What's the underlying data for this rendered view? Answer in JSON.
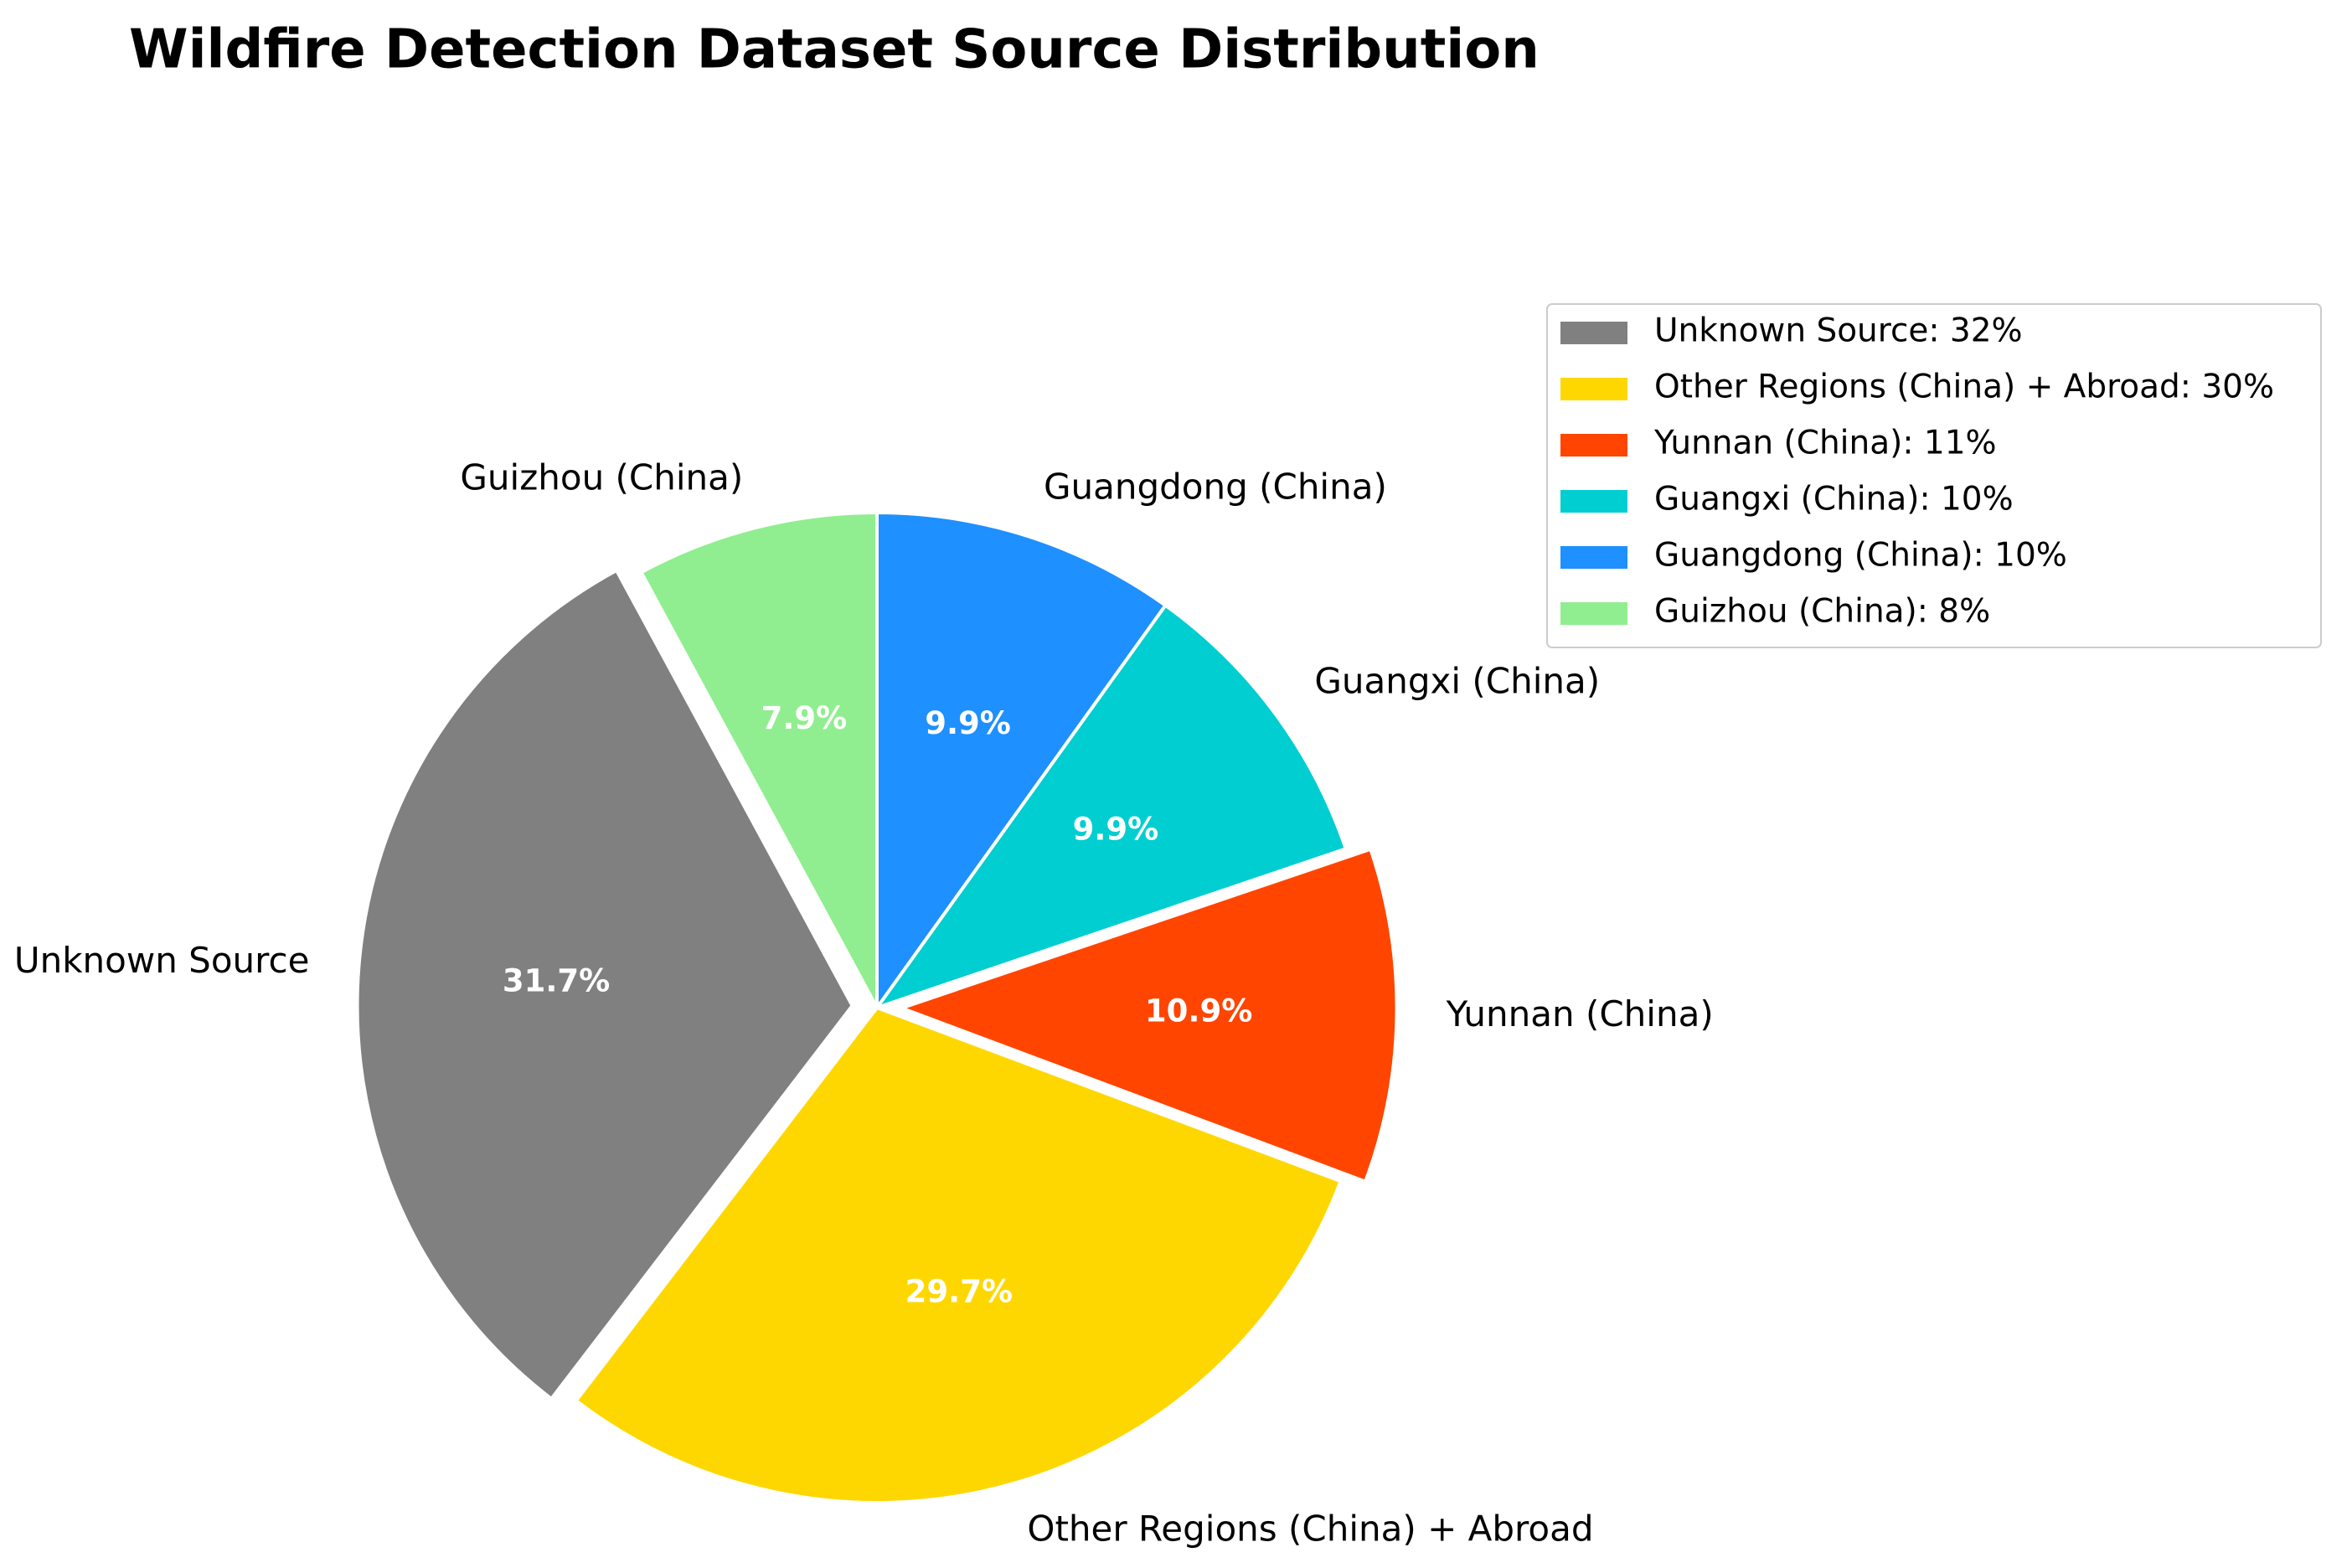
{
  "chart_data": {
    "type": "pie",
    "title": "Wildfire Detection Dataset Source Distribution",
    "categories": [
      "Unknown Source",
      "Other Regions (China) + Abroad",
      "Yunnan (China)",
      "Guangxi (China)",
      "Guangdong (China)",
      "Guizhou (China)"
    ],
    "values": [
      31.7,
      29.7,
      10.9,
      9.9,
      9.9,
      7.9
    ],
    "value_labels": [
      "31.7%",
      "29.7%",
      "10.9%",
      "9.9%",
      "9.9%",
      "7.9%"
    ],
    "colors": [
      "#808080",
      "#ffd700",
      "#ff4500",
      "#00ced1",
      "#1e90ff",
      "#90ee90"
    ],
    "explode": [
      0.05,
      0,
      0.05,
      0,
      0,
      0
    ],
    "legend_labels": [
      "Unknown Source: 32%",
      "Other Regions (China) + Abroad: 30%",
      "Yunnan (China): 11%",
      "Guangxi (China): 10%",
      "Guangdong (China): 10%",
      "Guizhou (China): 8%"
    ],
    "legend": "upper right"
  }
}
